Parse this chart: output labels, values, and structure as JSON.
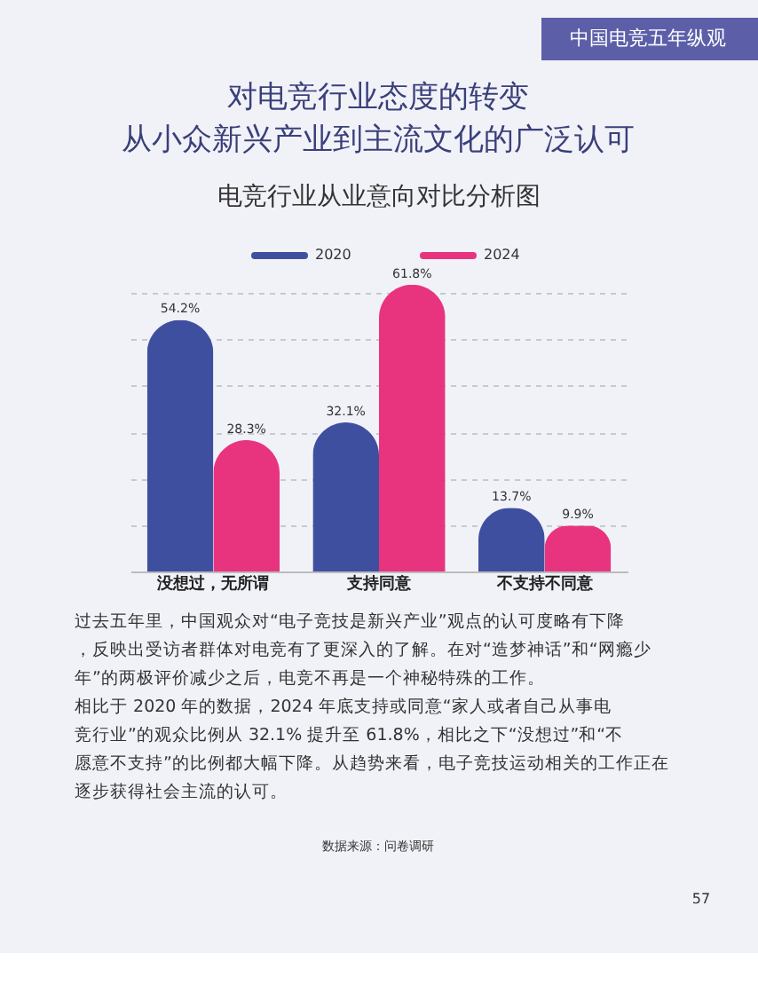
{
  "chart_data": {
    "type": "bar",
    "title": "电竞行业从业意向对比分析图",
    "categories": [
      "没想过，无所谓",
      "支持同意",
      "不支持不同意"
    ],
    "series": [
      {
        "name": "2020",
        "color": "#3f4fa0",
        "values": [
          54.2,
          32.1,
          13.7
        ],
        "value_labels": [
          "54.2%",
          "32.1%",
          "13.7%"
        ]
      },
      {
        "name": "2024",
        "color": "#e8347f",
        "values": [
          28.3,
          61.8,
          9.9
        ],
        "value_labels": [
          "28.3%",
          "61.8%",
          "9.9%"
        ]
      }
    ],
    "tick_labels": "x",
    "grid": "y",
    "legend": "top",
    "annotations": [
      "中国电竞五年纵观",
      "对电竞行业态度的转变",
      "从小众新兴产业到主流文化的广泛认可",
      "过去五年里，中国观众对“电子竞技是新兴产业”观点的认可度略有下降，反映出受访者群体对电竞有了更深入的了解。在对“造梦神话”和“网瘾少年”的两极评价减少之后，电竞不再是一个神秘特殊的工作。",
      "相比于 2020 年的数据，2024 年底支持或同意“家人或者自己从事电竞行业”的观众比例从 32.1% 提升至 61.8%，相比之下“没想过”和“不愿意不支持”的比例都大幅下降。从趋势来看，电子竞技运动相关的工作正在逐步获得社会主流的认可。",
      "数据来源：问卷调研",
      "57"
    ]
  }
}
